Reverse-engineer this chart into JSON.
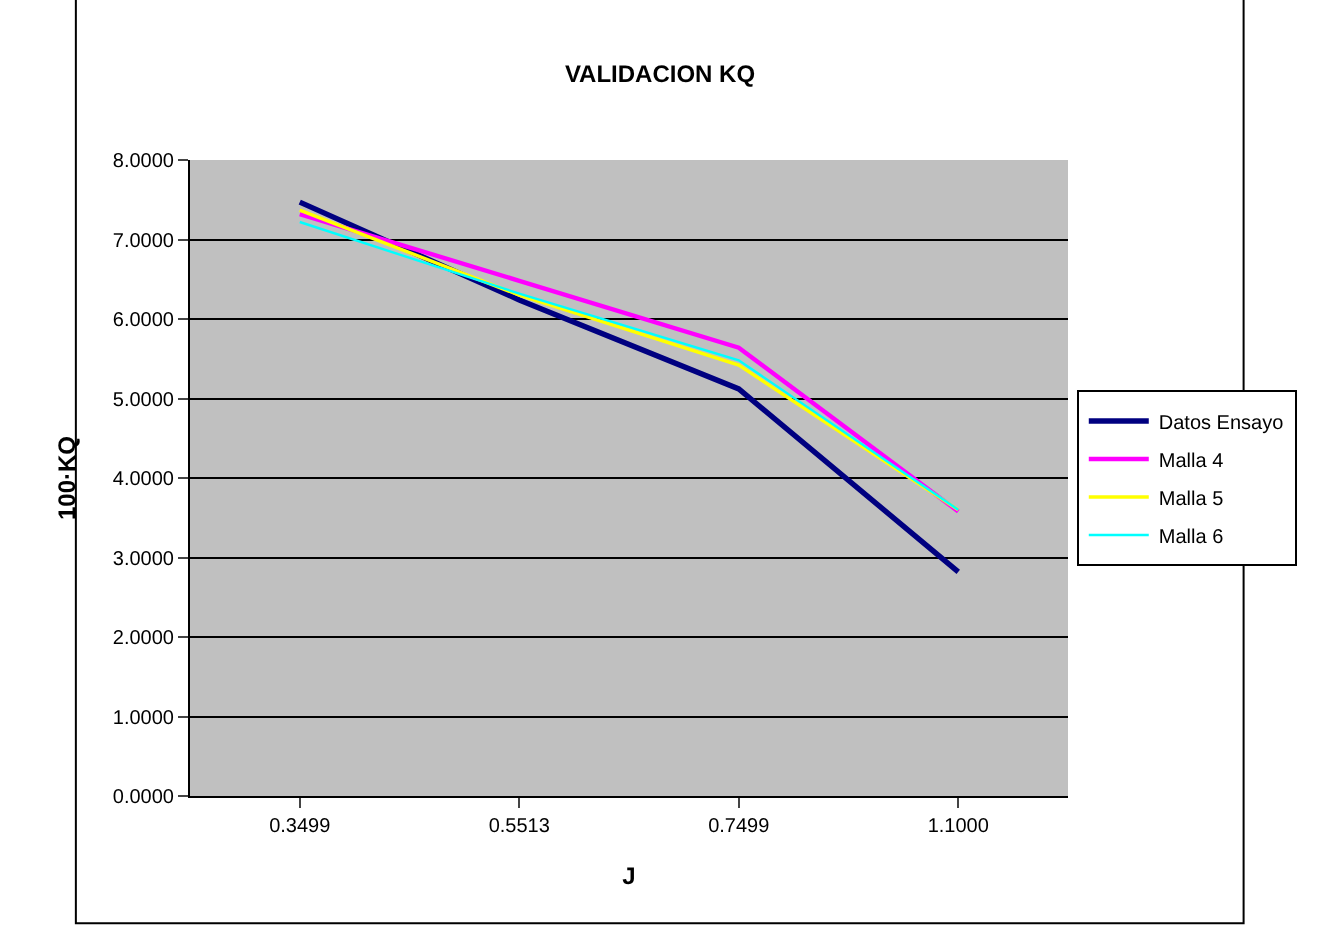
{
  "chart_data": {
    "type": "line",
    "title": "VALIDACION KQ",
    "xlabel": "J",
    "ylabel": "100·KQ",
    "categories": [
      "0.3499",
      "0.5513",
      "0.7499",
      "1.1000"
    ],
    "series": [
      {
        "name": "Datos Ensayo",
        "color": "#000080",
        "values": [
          7.47,
          6.24,
          5.12,
          2.82
        ]
      },
      {
        "name": "Malla 4",
        "color": "#ff00ff",
        "values": [
          7.32,
          6.48,
          5.64,
          3.58
        ]
      },
      {
        "name": "Malla 5",
        "color": "#ffff00",
        "values": [
          7.37,
          6.3,
          5.42,
          3.6
        ]
      },
      {
        "name": "Malla 6",
        "color": "#00ffff",
        "values": [
          7.22,
          6.32,
          5.48,
          3.6
        ]
      }
    ],
    "ylim": [
      0,
      8
    ],
    "yticks": [
      {
        "value": 0,
        "label": "0.0000"
      },
      {
        "value": 1,
        "label": "1.0000"
      },
      {
        "value": 2,
        "label": "2.0000"
      },
      {
        "value": 3,
        "label": "3.0000"
      },
      {
        "value": 4,
        "label": "4.0000"
      },
      {
        "value": 5,
        "label": "5.0000"
      },
      {
        "value": 6,
        "label": "6.0000"
      },
      {
        "value": 7,
        "label": "7.0000"
      },
      {
        "value": 8,
        "label": "8.0000"
      }
    ],
    "grid": "y",
    "legend": "right",
    "marker": "none",
    "line_style": "solid"
  }
}
